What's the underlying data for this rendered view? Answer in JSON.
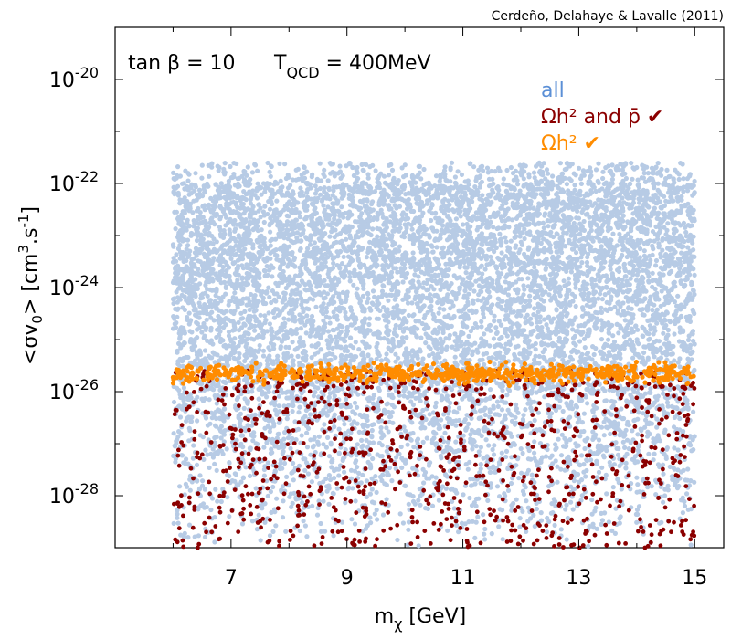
{
  "chart_data": {
    "type": "scatter",
    "credit": "Cerdeño, Delahaye & Lavalle (2011)",
    "annotation": {
      "tanb_label": "tan β = 10",
      "tqcd_main": "T",
      "tqcd_sub": "QCD",
      "tqcd_value": " = 400MeV"
    },
    "xlabel": {
      "main": "m",
      "sub": "χ",
      "unit": " [GeV]"
    },
    "ylabel": {
      "part1": "<σv",
      "sub": "0",
      "part2": "> [cm",
      "sup1": "3",
      "part3": ".s",
      "sup2": "-1",
      "part4": "]"
    },
    "xlim": [
      5.0,
      15.5
    ],
    "ylim_log10": [
      -29.0,
      -19.0
    ],
    "x_ticks": [
      {
        "value": 7,
        "label": "7"
      },
      {
        "value": 9,
        "label": "9"
      },
      {
        "value": 11,
        "label": "11"
      },
      {
        "value": 13,
        "label": "13"
      },
      {
        "value": 15,
        "label": "15"
      }
    ],
    "x_minor_ticks": [
      6,
      8,
      10,
      12,
      14
    ],
    "y_ticks": [
      {
        "exp": -20,
        "base": "10",
        "sup": "-20"
      },
      {
        "exp": -22,
        "base": "10",
        "sup": "-22"
      },
      {
        "exp": -24,
        "base": "10",
        "sup": "-24"
      },
      {
        "exp": -26,
        "base": "10",
        "sup": "-26"
      },
      {
        "exp": -28,
        "base": "10",
        "sup": "-28"
      }
    ],
    "y_minor_ticks_exp": [
      -19,
      -21,
      -23,
      -25,
      -27
    ],
    "series": [
      {
        "name": "all",
        "color": "#b7cbe5",
        "x_range": [
          6.0,
          15.0
        ],
        "log10_y_range": [
          -29.0,
          -21.6
        ],
        "approx_points": 9000
      },
      {
        "name": "Ωh² and p̄ ✔",
        "color": "#8b0000",
        "x_range": [
          6.0,
          15.0
        ],
        "log10_y_range": [
          -29.0,
          -25.6
        ],
        "approx_points": 900
      },
      {
        "name": "Ωh² ✔",
        "color": "#ff8c00",
        "x_range": [
          6.0,
          15.0
        ],
        "log10_y_range": [
          -25.9,
          -25.4
        ],
        "approx_points": 700
      }
    ],
    "legend": [
      {
        "label": "all",
        "color": "#5b8fd6"
      },
      {
        "label": "Ωh² and p̄ ✔",
        "color": "#8b0000"
      },
      {
        "label": "Ωh² ✔",
        "color": "#ff8c00"
      }
    ],
    "legend_position": "top-right",
    "grid": false
  }
}
